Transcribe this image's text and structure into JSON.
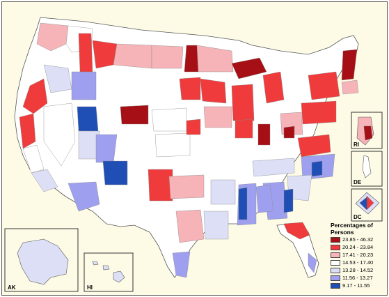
{
  "insets": {
    "ak": "AK",
    "hi": "HI",
    "ri": "RI",
    "de": "DE",
    "dc": "DC"
  },
  "legend": {
    "title": "Percentages of Persons",
    "classes": [
      {
        "label": "23.85 - 46.32",
        "color": "#a50f15"
      },
      {
        "label": "20.24 - 23.84",
        "color": "#ef3b3b"
      },
      {
        "label": "17.41 - 20.23",
        "color": "#f6b3b8"
      },
      {
        "label": "14.53 - 17.40",
        "color": "#ffffff"
      },
      {
        "label": "13.28 - 14.52",
        "color": "#dcdff5"
      },
      {
        "label": "11.56 - 13.27",
        "color": "#9ea0ef"
      },
      {
        "label": "9.17 - 11.55",
        "color": "#1f4fb5"
      }
    ]
  }
}
